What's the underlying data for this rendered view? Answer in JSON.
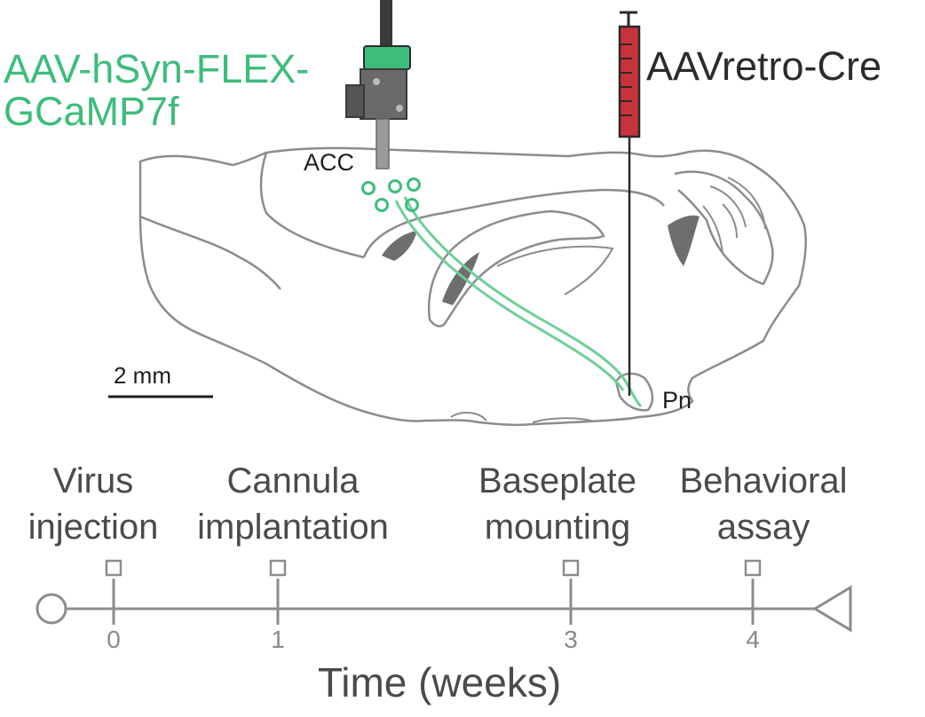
{
  "labels": {
    "virus_line1": "AAV-hSyn-FLEX-",
    "virus_line2": "GCaMP7f",
    "retro": "AAVretro-Cre",
    "acc": "ACC",
    "pn": "Pn",
    "scale": "2 mm"
  },
  "timeline": {
    "axis_title": "Time (weeks)",
    "events": [
      {
        "line1": "Virus",
        "line2": "injection",
        "week": 0
      },
      {
        "line1": "Cannula",
        "line2": "implantation",
        "week": 1
      },
      {
        "line1": "Baseplate",
        "line2": "mounting",
        "week": 3
      },
      {
        "line1": "Behavioral",
        "line2": "assay",
        "week": 4
      }
    ],
    "ticks": [
      "0",
      "1",
      "3",
      "4"
    ]
  },
  "colors": {
    "gcamp": "#3dbd7b",
    "syringe": "#c8333b",
    "outline": "#8c8c8c",
    "text": "#2b2b2b",
    "timeline": "#8c8c8c"
  }
}
